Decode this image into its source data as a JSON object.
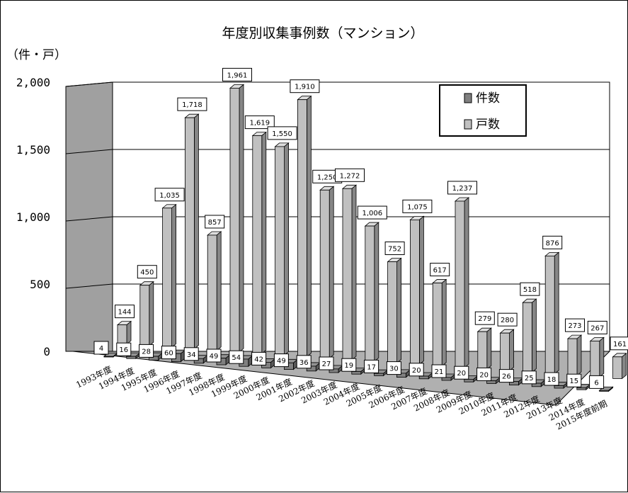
{
  "chart_data": {
    "type": "bar",
    "title": "年度別収集事例数（マンション）",
    "ylabel": "（件・戸）",
    "ylim": [
      0,
      2000
    ],
    "yticks": [
      "0",
      "500",
      "1,000",
      "1,500",
      "2,000"
    ],
    "categories": [
      "1993年度",
      "1994年度",
      "1995年度",
      "1996年度",
      "1997年度",
      "1998年度",
      "1999年度",
      "2000年度",
      "2001年度",
      "2002年度",
      "2003年度",
      "2004年度",
      "2005年度",
      "2006年度",
      "2007年度",
      "2008年度",
      "2009年度",
      "2010年度",
      "2011年度",
      "2012年度",
      "2013年度",
      "2014年度",
      "2015年度前期"
    ],
    "legend_position": "top-right",
    "grid": true,
    "series": [
      {
        "name": "件数",
        "color": "#808080",
        "values": [
          4,
          16,
          28,
          60,
          34,
          49,
          54,
          42,
          49,
          36,
          27,
          19,
          17,
          30,
          20,
          21,
          20,
          20,
          26,
          25,
          18,
          15,
          6
        ]
      },
      {
        "name": "戸数",
        "color": "#c0c0c0",
        "values": [
          144,
          450,
          1035,
          1718,
          857,
          1961,
          1619,
          1550,
          1910,
          1250,
          1272,
          1006,
          752,
          1075,
          617,
          1237,
          279,
          280,
          518,
          876,
          273,
          267,
          161
        ]
      }
    ],
    "value_labels": {
      "件数": [
        "4",
        "16",
        "28",
        "60",
        "34",
        "49",
        "54",
        "42",
        "49",
        "36",
        "27",
        "19",
        "17",
        "30",
        "20",
        "21",
        "20",
        "20",
        "26",
        "25",
        "18",
        "15",
        "6"
      ],
      "戸数": [
        "144",
        "450",
        "1,035",
        "1,718",
        "857",
        "1,961",
        "1,619",
        "1,550",
        "1,910",
        "1,250",
        "1,272",
        "1,006",
        "752",
        "1,075",
        "617",
        "1,237",
        "279",
        "280",
        "518",
        "876",
        "273",
        "267",
        "161"
      ]
    }
  }
}
